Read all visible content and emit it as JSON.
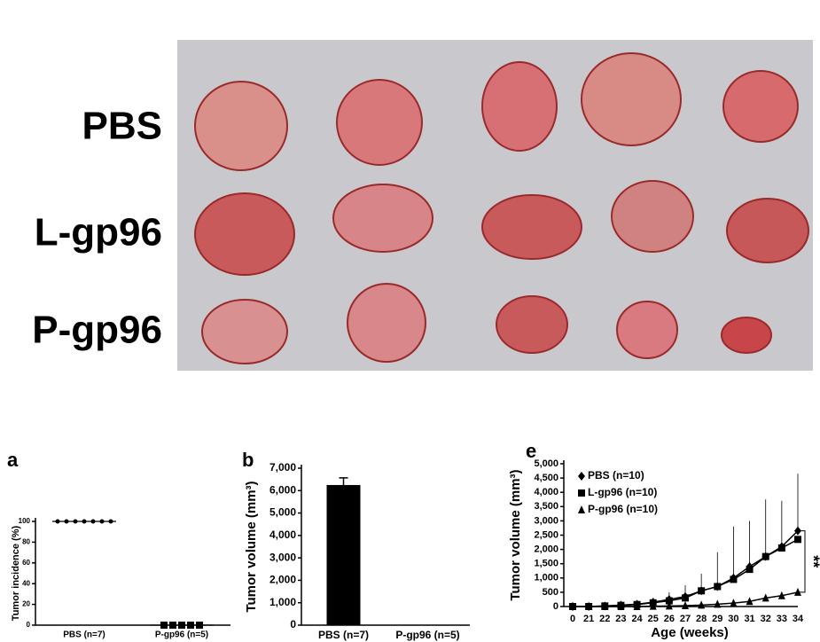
{
  "photo": {
    "labels": [
      "PBS",
      "L-gp96",
      "P-gp96"
    ]
  },
  "chart_data": [
    {
      "type": "dot",
      "panel": "a",
      "ylabel": "Tumor incidence (%)",
      "categories": [
        "PBS (n=7)",
        "P-gp96 (n=5)"
      ],
      "values": [
        [
          100,
          100,
          100,
          100,
          100,
          100,
          100
        ],
        [
          0,
          0,
          0,
          0,
          0
        ]
      ],
      "means": [
        100,
        0
      ],
      "color": "#000000",
      "ylim": [
        0,
        100
      ],
      "yticks": [
        0,
        20,
        40,
        60,
        80,
        100
      ]
    },
    {
      "type": "bar",
      "panel": "b",
      "ylabel": "Tumor volume (mm³)",
      "categories": [
        "PBS (n=7)",
        "P-gp96 (n=5)"
      ],
      "values": [
        6250,
        0
      ],
      "errors": [
        320,
        0
      ],
      "color": "#000000",
      "ylim": [
        0,
        7000
      ],
      "yticks": [
        0,
        {
          "value": 1000,
          "label": "1,000"
        },
        {
          "value": 2000,
          "label": "2,000"
        },
        {
          "value": 3000,
          "label": "3,000"
        },
        {
          "value": 4000,
          "label": "4,000"
        },
        {
          "value": 5000,
          "label": "5,000"
        },
        {
          "value": 6000,
          "label": "6,000"
        },
        {
          "value": 7000,
          "label": "7,000"
        }
      ]
    },
    {
      "type": "line",
      "panel": "e",
      "ylabel": "Tumor volume (mm³)",
      "xlabel": "Age (weeks)",
      "categories": [
        0,
        21,
        22,
        23,
        24,
        25,
        26,
        27,
        28,
        29,
        30,
        31,
        32,
        33,
        34
      ],
      "series": [
        {
          "name": "PBS (n=10)",
          "marker": "diamond",
          "color": "#000000",
          "values": [
            0,
            0,
            20,
            50,
            80,
            150,
            250,
            350,
            550,
            700,
            1000,
            1400,
            1750,
            2100,
            2650
          ],
          "errors": [
            0,
            0,
            30,
            60,
            100,
            150,
            250,
            400,
            600,
            1200,
            1800,
            1600,
            2000,
            1600,
            2000
          ]
        },
        {
          "name": "L-gp96 (n=10)",
          "marker": "square",
          "color": "#000000",
          "values": [
            0,
            0,
            20,
            40,
            70,
            130,
            200,
            300,
            550,
            700,
            950,
            1300,
            1750,
            2050,
            2350
          ]
        },
        {
          "name": "P-gp96 (n=10)",
          "marker": "triangle",
          "color": "#000000",
          "values": [
            0,
            0,
            0,
            0,
            0,
            10,
            20,
            30,
            50,
            80,
            120,
            180,
            300,
            380,
            500
          ]
        }
      ],
      "annotation": "**",
      "ylim": [
        0,
        5000
      ],
      "yticks": [
        0,
        500,
        {
          "value": 1000,
          "label": "1,000"
        },
        {
          "value": 1500,
          "label": "1,500"
        },
        {
          "value": 2000,
          "label": "2,000"
        },
        {
          "value": 2500,
          "label": "2,500"
        },
        {
          "value": 3000,
          "label": "3,000"
        },
        {
          "value": 3500,
          "label": "3,500"
        },
        {
          "value": 4000,
          "label": "4,000"
        },
        {
          "value": 4500,
          "label": "4,500"
        },
        {
          "value": 5000,
          "label": "5,000"
        }
      ]
    }
  ]
}
